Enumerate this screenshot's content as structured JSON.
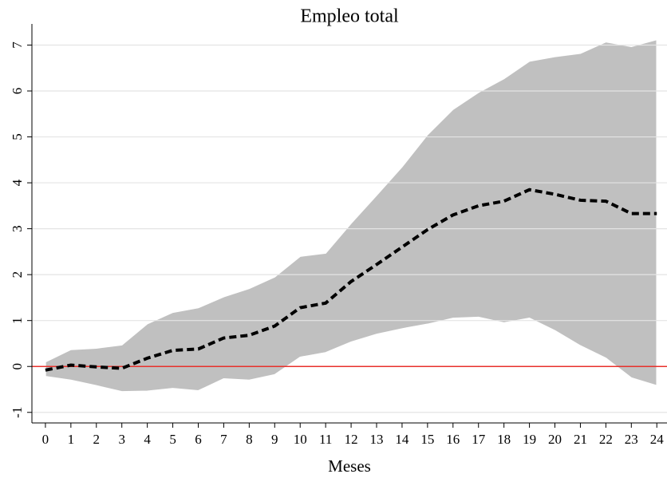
{
  "chart_data": {
    "type": "line",
    "title": "Empleo total",
    "x_label": "Meses",
    "x": [
      0,
      1,
      2,
      3,
      4,
      5,
      6,
      7,
      8,
      9,
      10,
      11,
      12,
      13,
      14,
      15,
      16,
      17,
      18,
      19,
      20,
      21,
      22,
      23,
      24
    ],
    "values": [
      -0.08,
      0.03,
      -0.01,
      -0.04,
      0.18,
      0.35,
      0.38,
      0.62,
      0.68,
      0.88,
      1.28,
      1.38,
      1.85,
      2.22,
      2.6,
      2.98,
      3.3,
      3.5,
      3.6,
      3.85,
      3.75,
      3.62,
      3.6,
      3.33,
      3.33
    ],
    "upper": [
      0.1,
      0.37,
      0.4,
      0.47,
      0.93,
      1.18,
      1.28,
      1.52,
      1.7,
      1.95,
      2.4,
      2.47,
      3.12,
      3.73,
      4.35,
      5.05,
      5.6,
      5.97,
      6.27,
      6.65,
      6.75,
      6.82,
      7.07,
      6.97,
      7.12
    ],
    "lower": [
      -0.22,
      -0.3,
      -0.42,
      -0.55,
      -0.54,
      -0.48,
      -0.53,
      -0.27,
      -0.3,
      -0.18,
      0.2,
      0.3,
      0.53,
      0.7,
      0.82,
      0.92,
      1.05,
      1.07,
      0.95,
      1.05,
      0.78,
      0.45,
      0.18,
      -0.25,
      -0.42
    ],
    "color": "#000000",
    "band_color": "#c0c0c0",
    "reference_line": {
      "value": 0,
      "color": "#e8312b"
    },
    "xlim": [
      -0.53,
      24.4
    ],
    "ylim": [
      -1.23,
      7.46
    ],
    "xticks": [
      0,
      1,
      2,
      3,
      4,
      5,
      6,
      7,
      8,
      9,
      10,
      11,
      12,
      13,
      14,
      15,
      16,
      17,
      18,
      19,
      20,
      21,
      22,
      23,
      24
    ],
    "yticks": [
      -1,
      0,
      1,
      2,
      3,
      4,
      5,
      6,
      7
    ],
    "grid": true
  }
}
